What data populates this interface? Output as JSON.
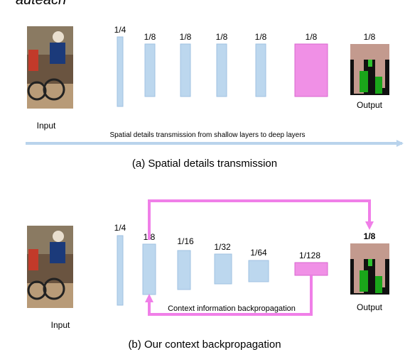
{
  "header_fragment": "auteach",
  "colors": {
    "feature": "#bcd7ee",
    "feature_stroke": "#9fc2e2",
    "highlight": "#f090e6",
    "highlight_stroke": "#d966cf",
    "arrow_blue": "#b9d3ec",
    "arrow_pink": "#f07fe8"
  },
  "panel_a": {
    "caption": "(a) Spatial details transmission",
    "input_label": "Input",
    "output_label": "Output",
    "layer_labels": [
      "1/4",
      "1/8",
      "1/8",
      "1/8",
      "1/8",
      "1/8",
      "1/8"
    ],
    "arrow_text": "Spatial details transmission from shallow layers to deep layers"
  },
  "panel_b": {
    "caption": "(b) Our context backpropagation",
    "input_label": "Input",
    "output_label": "Output",
    "layer_labels": [
      "1/4",
      "1/8",
      "1/16",
      "1/32",
      "1/64",
      "1/128",
      "1/8"
    ],
    "arrow_text": "Context information backpropagation"
  }
}
